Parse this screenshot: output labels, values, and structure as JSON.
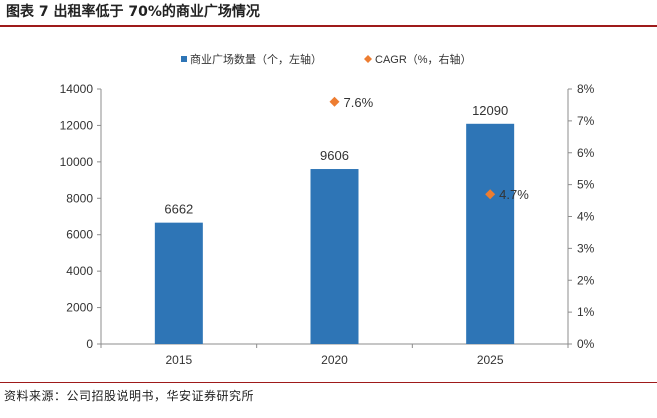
{
  "figure": {
    "title": "图表 7  出租率低于 70%的商业广场情况",
    "source": "资料来源：公司招股说明书，华安证券研究所"
  },
  "legend": {
    "bar_label": "商业广场数量（个，左轴）",
    "marker_label": "CAGR（%，右轴）"
  },
  "colors": {
    "bar": "#2E75B6",
    "marker": "#ED7D31",
    "axis": "#8c8c8c",
    "text": "#333333"
  },
  "chart_data": {
    "type": "bar",
    "categories": [
      "2015",
      "2020",
      "2025"
    ],
    "series": [
      {
        "name": "商业广场数量（个，左轴）",
        "type": "bar",
        "axis": "left",
        "values": [
          6662,
          9606,
          12090
        ]
      },
      {
        "name": "CAGR（%，右轴）",
        "type": "scatter",
        "axis": "right",
        "points": [
          {
            "category": "2020",
            "value": 7.6,
            "label": "7.6%"
          },
          {
            "category": "2025",
            "value": 4.7,
            "label": "4.7%"
          }
        ]
      }
    ],
    "left_axis": {
      "min": 0,
      "max": 14000,
      "step": 2000,
      "ticks": [
        "0",
        "2000",
        "4000",
        "6000",
        "8000",
        "10000",
        "12000",
        "14000"
      ]
    },
    "right_axis": {
      "min": 0,
      "max": 8,
      "step": 1,
      "ticks": [
        "0%",
        "1%",
        "2%",
        "3%",
        "4%",
        "5%",
        "6%",
        "7%",
        "8%"
      ]
    },
    "grid": false,
    "legend_position": "top"
  }
}
